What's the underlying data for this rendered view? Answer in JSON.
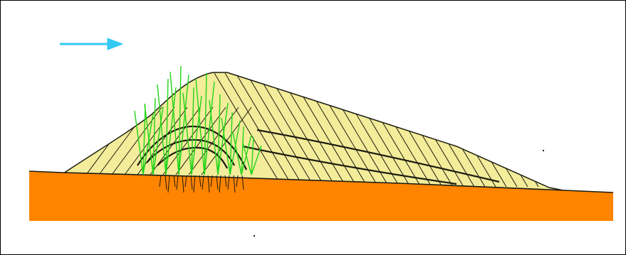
{
  "diagram": {
    "colors": {
      "background": "#ffffff",
      "border": "#000000",
      "wind_arrow": "#33c9f2",
      "dune_fill": "#f3ec9a",
      "dune_lines": "#1b1b10",
      "grass": "#22d51a",
      "ground": "#ff8400"
    },
    "icons": {
      "wind": "wind-direction-arrow-icon",
      "vegetation": "grass-icon"
    }
  }
}
